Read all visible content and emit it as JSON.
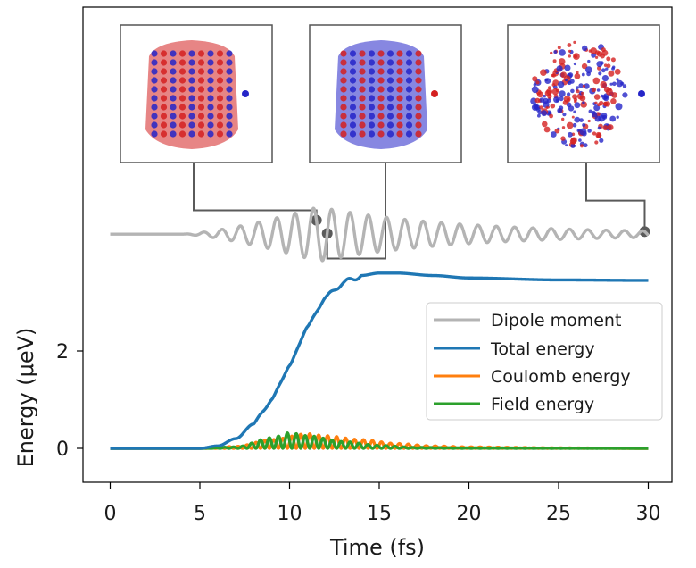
{
  "chart_data": {
    "type": "line",
    "xlabel": "Time (fs)",
    "ylabel": "Energy (μeV)",
    "xlim": [
      -1.5,
      31.5
    ],
    "ylim": [
      -0.65,
      9.1
    ],
    "x_ticks": [
      0,
      5,
      10,
      15,
      20,
      25,
      30
    ],
    "y_ticks": [
      0,
      2
    ],
    "legend_position": "center-right",
    "grid": false,
    "series": [
      {
        "name": "Dipole moment",
        "color": "#b4b4b4",
        "baseline": 4.4,
        "points": [
          [
            0,
            4.4
          ],
          [
            4,
            4.4
          ],
          [
            6,
            4.38
          ],
          [
            8,
            4.28
          ],
          [
            10,
            4.05
          ],
          [
            11.5,
            4.45
          ],
          [
            12,
            3.95
          ],
          [
            13,
            4.3
          ],
          [
            15,
            4.15
          ],
          [
            17,
            4.25
          ],
          [
            20,
            4.33
          ],
          [
            25,
            4.37
          ],
          [
            30,
            4.4
          ]
        ]
      },
      {
        "name": "Total energy",
        "color": "#1f77b4",
        "points": [
          [
            0,
            0
          ],
          [
            5,
            0
          ],
          [
            6,
            0.05
          ],
          [
            7,
            0.2
          ],
          [
            8,
            0.5
          ],
          [
            9,
            1.0
          ],
          [
            10,
            1.7
          ],
          [
            11,
            2.5
          ],
          [
            12,
            3.1
          ],
          [
            13,
            3.4
          ],
          [
            14,
            3.55
          ],
          [
            15,
            3.6
          ],
          [
            16,
            3.6
          ],
          [
            18,
            3.55
          ],
          [
            20,
            3.5
          ],
          [
            25,
            3.46
          ],
          [
            30,
            3.45
          ]
        ]
      },
      {
        "name": "Coulomb energy",
        "color": "#ff7f0e",
        "points": [
          [
            0,
            0
          ],
          [
            5,
            0
          ],
          [
            7,
            0.04
          ],
          [
            9,
            0.18
          ],
          [
            11,
            0.3
          ],
          [
            12,
            0.26
          ],
          [
            14,
            0.18
          ],
          [
            16,
            0.1
          ],
          [
            18,
            0.05
          ],
          [
            20,
            0.03
          ],
          [
            25,
            0.01
          ],
          [
            30,
            0
          ]
        ]
      },
      {
        "name": "Field energy",
        "color": "#2ca02c",
        "points": [
          [
            0,
            0
          ],
          [
            5,
            0
          ],
          [
            7,
            0.03
          ],
          [
            9,
            0.22
          ],
          [
            10,
            0.32
          ],
          [
            11,
            0.26
          ],
          [
            13,
            0.14
          ],
          [
            15,
            0.06
          ],
          [
            17,
            0.02
          ],
          [
            20,
            0.01
          ],
          [
            30,
            0
          ]
        ]
      }
    ],
    "insets": [
      {
        "name": "isosurface-inset-1",
        "time_fs": 11.5
      },
      {
        "name": "isosurface-inset-2",
        "time_fs": 12.1
      },
      {
        "name": "isosurface-inset-3",
        "time_fs": 29.8
      }
    ],
    "colors": {
      "density_positive": "#d42020",
      "density_negative": "#2525c8"
    }
  }
}
